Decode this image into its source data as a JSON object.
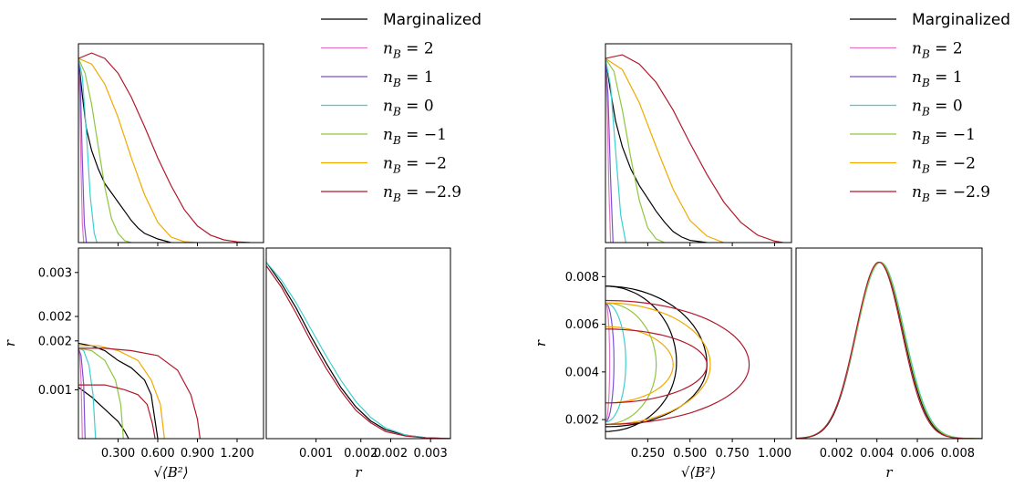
{
  "legend": {
    "entries": [
      {
        "label": "Marginalized",
        "color": "#000000"
      },
      {
        "label": "n_B = 2",
        "prefix": "n",
        "sub": "B",
        "rhs": " = 2",
        "color": "#e377c2"
      },
      {
        "label": "n_B = 1",
        "prefix": "n",
        "sub": "B",
        "rhs": " = 1",
        "color": "#7b52d6"
      },
      {
        "label": "n_B = 0",
        "prefix": "n",
        "sub": "B",
        "rhs": " = 0",
        "color": "#3fcfcf"
      },
      {
        "label": "n_B = −1",
        "prefix": "n",
        "sub": "B",
        "rhs": " = −1",
        "color": "#8fc63f"
      },
      {
        "label": "n_B = −2",
        "prefix": "n",
        "sub": "B",
        "rhs": " = −2",
        "color": "#f2a900"
      },
      {
        "label": "n_B = −2.9",
        "prefix": "n",
        "sub": "B",
        "rhs": " = −2.9",
        "color": "#b2182b"
      }
    ]
  },
  "chart_data": [
    {
      "type": "line",
      "panel": "left-top",
      "xlabel": "",
      "xlim": [
        0,
        1.4
      ],
      "x_ticks": [
        0.3,
        0.6,
        0.9,
        1.2
      ],
      "curves": [
        {
          "series": 0,
          "x": [
            0,
            0.03,
            0.06,
            0.1,
            0.15,
            0.2,
            0.25,
            0.3,
            0.35,
            0.4,
            0.45,
            0.5,
            0.6,
            0.7
          ],
          "y": [
            1.0,
            0.8,
            0.62,
            0.5,
            0.4,
            0.32,
            0.27,
            0.22,
            0.17,
            0.12,
            0.08,
            0.05,
            0.02,
            0.0
          ]
        },
        {
          "series": 1,
          "x": [
            0,
            0.01,
            0.02,
            0.03,
            0.04
          ],
          "y": [
            1.0,
            0.8,
            0.4,
            0.1,
            0.0
          ]
        },
        {
          "series": 2,
          "x": [
            0,
            0.015,
            0.03,
            0.045,
            0.06
          ],
          "y": [
            1.0,
            0.85,
            0.45,
            0.1,
            0.0
          ]
        },
        {
          "series": 3,
          "x": [
            0,
            0.03,
            0.06,
            0.09,
            0.12,
            0.14
          ],
          "y": [
            1.0,
            0.9,
            0.6,
            0.25,
            0.05,
            0.0
          ]
        },
        {
          "series": 4,
          "x": [
            0,
            0.05,
            0.1,
            0.15,
            0.2,
            0.25,
            0.3,
            0.35,
            0.4
          ],
          "y": [
            1.0,
            0.92,
            0.75,
            0.52,
            0.3,
            0.13,
            0.05,
            0.01,
            0.0
          ]
        },
        {
          "series": 5,
          "x": [
            0,
            0.1,
            0.2,
            0.3,
            0.4,
            0.5,
            0.6,
            0.7,
            0.8,
            0.9
          ],
          "y": [
            1.0,
            0.97,
            0.86,
            0.68,
            0.46,
            0.26,
            0.11,
            0.03,
            0.005,
            0.0
          ]
        },
        {
          "series": 6,
          "x": [
            0,
            0.1,
            0.2,
            0.3,
            0.4,
            0.5,
            0.6,
            0.7,
            0.8,
            0.9,
            1.0,
            1.1,
            1.2,
            1.3
          ],
          "y": [
            1.0,
            1.03,
            1.0,
            0.92,
            0.79,
            0.63,
            0.46,
            0.31,
            0.18,
            0.09,
            0.04,
            0.015,
            0.004,
            0.0
          ]
        }
      ]
    },
    {
      "type": "line",
      "panel": "left-bottom-left",
      "xlabel": "√⟨B²⟩",
      "ylabel": "r",
      "xlim": [
        0,
        1.4
      ],
      "ylim": [
        0,
        0.0039
      ],
      "x_ticks": [
        "0.300",
        "0.600",
        "0.900",
        "1.200"
      ],
      "x_tick_values": [
        0.3,
        0.6,
        0.9,
        1.2
      ],
      "y_ticks": [
        "0.001",
        "0.002",
        "0.002",
        "0.003"
      ],
      "y_tick_values": [
        0.001,
        0.002,
        0.0025,
        0.0034
      ],
      "curves": [
        {
          "series": 0,
          "x": [
            0,
            0.1,
            0.2,
            0.3,
            0.4,
            0.5,
            0.55,
            0.6
          ],
          "y": [
            0.00195,
            0.0019,
            0.0018,
            0.0016,
            0.00145,
            0.0012,
            0.0009,
            0.0
          ]
        },
        {
          "series": 0,
          "x": [
            0,
            0.1,
            0.2,
            0.3,
            0.35,
            0.38
          ],
          "y": [
            0.00105,
            0.00085,
            0.0006,
            0.00035,
            0.00015,
            0.0
          ]
        },
        {
          "series": 1,
          "x": [
            0,
            0.01,
            0.02,
            0.03
          ],
          "y": [
            0.00185,
            0.0017,
            0.0012,
            0.0
          ]
        },
        {
          "series": 2,
          "x": [
            0,
            0.02,
            0.04,
            0.05
          ],
          "y": [
            0.00185,
            0.0017,
            0.0011,
            0.0
          ]
        },
        {
          "series": 3,
          "x": [
            0,
            0.04,
            0.08,
            0.11,
            0.13
          ],
          "y": [
            0.00185,
            0.0018,
            0.0015,
            0.0009,
            0.0
          ]
        },
        {
          "series": 4,
          "x": [
            0,
            0.1,
            0.2,
            0.28,
            0.32,
            0.34
          ],
          "y": [
            0.00185,
            0.0018,
            0.0016,
            0.0012,
            0.0007,
            0.0
          ]
        },
        {
          "series": 5,
          "x": [
            0,
            0.15,
            0.3,
            0.45,
            0.55,
            0.62,
            0.65
          ],
          "y": [
            0.0019,
            0.0019,
            0.0018,
            0.0016,
            0.0012,
            0.0007,
            0.0
          ]
        },
        {
          "series": 6,
          "x": [
            0,
            0.2,
            0.4,
            0.6,
            0.75,
            0.85,
            0.9,
            0.92
          ],
          "y": [
            0.00185,
            0.00185,
            0.0018,
            0.0017,
            0.0014,
            0.0009,
            0.0004,
            0.0
          ]
        },
        {
          "series": 6,
          "x": [
            0,
            0.2,
            0.35,
            0.45,
            0.52,
            0.56,
            0.58
          ],
          "y": [
            0.0011,
            0.0011,
            0.001,
            0.0009,
            0.0007,
            0.0003,
            0.0
          ]
        }
      ]
    },
    {
      "type": "line",
      "panel": "left-bottom-right",
      "xlabel": "r",
      "xlim": [
        0,
        0.0037
      ],
      "x_ticks": [
        "0.001",
        "0.002",
        "0.002",
        "0.003"
      ],
      "x_tick_values": [
        0.001,
        0.0019,
        0.0025,
        0.0033
      ],
      "curves": [
        {
          "series": 0,
          "x": [
            0,
            0.0003,
            0.0006,
            0.0009,
            0.0012,
            0.0015,
            0.0018,
            0.0021,
            0.0024,
            0.0028,
            0.0032,
            0.0037
          ],
          "y": [
            1.0,
            0.88,
            0.74,
            0.58,
            0.43,
            0.29,
            0.18,
            0.1,
            0.05,
            0.02,
            0.005,
            0.0
          ]
        },
        {
          "series": 3,
          "x": [
            0,
            0.0003,
            0.0006,
            0.0009,
            0.0012,
            0.0015,
            0.0018,
            0.0021,
            0.0024,
            0.0028,
            0.0032,
            0.0037
          ],
          "y": [
            1.0,
            0.9,
            0.77,
            0.62,
            0.47,
            0.33,
            0.21,
            0.12,
            0.06,
            0.02,
            0.005,
            0.0
          ]
        },
        {
          "series": 6,
          "x": [
            0,
            0.0003,
            0.0006,
            0.0009,
            0.0012,
            0.0015,
            0.0018,
            0.0021,
            0.0024,
            0.0028,
            0.0032,
            0.0037
          ],
          "y": [
            0.98,
            0.86,
            0.71,
            0.55,
            0.4,
            0.27,
            0.16,
            0.09,
            0.04,
            0.015,
            0.004,
            0.0
          ]
        }
      ]
    },
    {
      "type": "line",
      "panel": "right-top",
      "xlabel": "",
      "xlim": [
        0,
        1.1
      ],
      "x_ticks": [
        0.25,
        0.5,
        0.75,
        1.0
      ],
      "curves": [
        {
          "series": 0,
          "x": [
            0,
            0.03,
            0.06,
            0.1,
            0.15,
            0.2,
            0.25,
            0.3,
            0.35,
            0.4,
            0.45,
            0.5,
            0.6
          ],
          "y": [
            1.0,
            0.82,
            0.66,
            0.52,
            0.4,
            0.31,
            0.24,
            0.17,
            0.11,
            0.06,
            0.03,
            0.012,
            0.0
          ]
        },
        {
          "series": 1,
          "x": [
            0,
            0.01,
            0.02,
            0.03
          ],
          "y": [
            1.0,
            0.75,
            0.3,
            0.0
          ]
        },
        {
          "series": 2,
          "x": [
            0,
            0.015,
            0.03,
            0.045
          ],
          "y": [
            1.0,
            0.8,
            0.35,
            0.0
          ]
        },
        {
          "series": 3,
          "x": [
            0,
            0.03,
            0.06,
            0.09,
            0.12
          ],
          "y": [
            1.0,
            0.85,
            0.5,
            0.15,
            0.0
          ]
        },
        {
          "series": 4,
          "x": [
            0,
            0.05,
            0.1,
            0.15,
            0.2,
            0.25,
            0.3,
            0.35
          ],
          "y": [
            1.0,
            0.93,
            0.72,
            0.46,
            0.23,
            0.08,
            0.02,
            0.0
          ]
        },
        {
          "series": 5,
          "x": [
            0,
            0.1,
            0.2,
            0.3,
            0.4,
            0.5,
            0.6,
            0.7
          ],
          "y": [
            1.0,
            0.94,
            0.76,
            0.52,
            0.29,
            0.12,
            0.035,
            0.0
          ]
        },
        {
          "series": 6,
          "x": [
            0,
            0.1,
            0.2,
            0.3,
            0.4,
            0.5,
            0.6,
            0.7,
            0.8,
            0.9,
            1.0,
            1.05
          ],
          "y": [
            1.0,
            1.02,
            0.97,
            0.87,
            0.72,
            0.54,
            0.37,
            0.22,
            0.11,
            0.04,
            0.008,
            0.0
          ]
        }
      ]
    },
    {
      "type": "line",
      "panel": "right-bottom-left",
      "xlabel": "√⟨B²⟩",
      "ylabel": "r",
      "xlim": [
        0,
        1.1
      ],
      "ylim": [
        0.0012,
        0.0092
      ],
      "x_ticks": [
        "0.250",
        "0.500",
        "0.750",
        "1.000"
      ],
      "x_tick_values": [
        0.25,
        0.5,
        0.75,
        1.0
      ],
      "y_ticks": [
        "0.002",
        "0.004",
        "0.006",
        "0.008"
      ],
      "y_tick_values": [
        0.002,
        0.004,
        0.006,
        0.008
      ],
      "ellipses": [
        {
          "series": 0,
          "cy": 0.0044,
          "rx": 0.42,
          "ry_top": 0.0032,
          "ry_bot": 0.0029
        },
        {
          "series": 0,
          "cy": 0.0043,
          "rx": 0.6,
          "ry_top": 0.0033,
          "ry_bot": 0.0026
        },
        {
          "series": 1,
          "cy": 0.0044,
          "rx": 0.025,
          "ry_top": 0.0025,
          "ry_bot": 0.0025
        },
        {
          "series": 2,
          "cy": 0.0044,
          "rx": 0.05,
          "ry_top": 0.0025,
          "ry_bot": 0.0025
        },
        {
          "series": 3,
          "cy": 0.0044,
          "rx": 0.12,
          "ry_top": 0.0025,
          "ry_bot": 0.0025
        },
        {
          "series": 4,
          "cy": 0.0043,
          "rx": 0.3,
          "ry_top": 0.0026,
          "ry_bot": 0.0025
        },
        {
          "series": 5,
          "cy": 0.0043,
          "rx": 0.4,
          "ry_top": 0.0016,
          "ry_bot": 0.0016
        },
        {
          "series": 5,
          "cy": 0.0043,
          "rx": 0.62,
          "ry_top": 0.0026,
          "ry_bot": 0.0025
        },
        {
          "series": 6,
          "cy": 0.0043,
          "rx": 0.6,
          "ry_top": 0.0015,
          "ry_bot": 0.0016
        },
        {
          "series": 6,
          "cy": 0.0043,
          "rx": 0.85,
          "ry_top": 0.0027,
          "ry_bot": 0.0025
        }
      ]
    },
    {
      "type": "line",
      "panel": "right-bottom-right",
      "xlabel": "r",
      "xlim": [
        0,
        0.0092
      ],
      "x_ticks": [
        "0.002",
        "0.004",
        "0.006",
        "0.008"
      ],
      "x_tick_values": [
        0.002,
        0.004,
        0.006,
        0.008
      ],
      "gaussians": [
        {
          "series": 0,
          "mu": 0.00415,
          "sigma": 0.00115
        },
        {
          "series": 3,
          "mu": 0.00418,
          "sigma": 0.00118
        },
        {
          "series": 4,
          "mu": 0.00416,
          "sigma": 0.00117
        },
        {
          "series": 6,
          "mu": 0.0041,
          "sigma": 0.00114
        }
      ]
    }
  ]
}
